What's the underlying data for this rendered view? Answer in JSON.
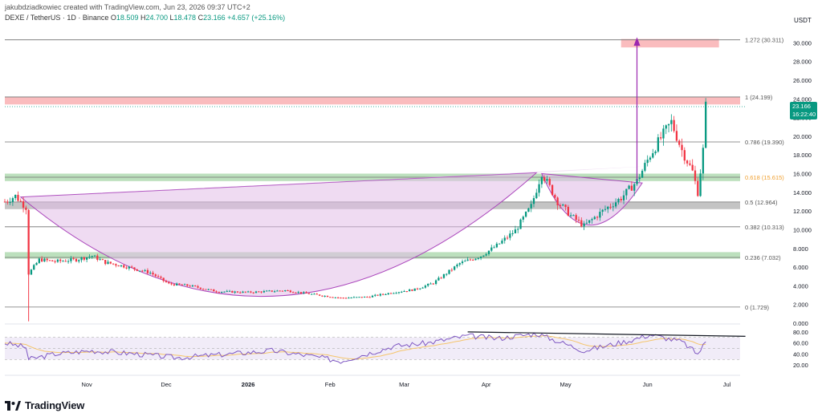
{
  "header": {
    "created_by": "jakubdziadkowiec created with TradingView.com, Jun 23, 2026 09:37 UTC+2",
    "symbol": "DEXE / TetherUS · 1D · Binance",
    "o_label": "O",
    "o": "18.509",
    "h_label": "H",
    "h": "24.700",
    "l_label": "L",
    "l": "18.478",
    "c_label": "C",
    "c": "23.166",
    "change": "+4.657 (+25.16%)"
  },
  "axis": {
    "unit": "USDT"
  },
  "footer": {
    "brand": "TradingView"
  },
  "colors": {
    "up": "#089981",
    "down": "#f23645",
    "cup_fill": "#e1bee7",
    "green_zone": "#a5d6a7",
    "red_zone": "#f8a5a8",
    "gray_zone": "#b0b0b0",
    "rsi_line": "#7e57c2",
    "rsi_ma": "#f5c56b",
    "arrow": "#9c27b0",
    "fib_618": "#f0a030"
  },
  "chart_data": {
    "type": "candlestick",
    "ylim": [
      0,
      32
    ],
    "y_ticks": [
      "0.000",
      "2.000",
      "4.000",
      "6.000",
      "8.000",
      "10.000",
      "12.000",
      "14.000",
      "16.000",
      "18.000",
      "20.000",
      "22.000",
      "24.000",
      "26.000",
      "28.000",
      "30.000"
    ],
    "x_ticks": [
      "Nov",
      "Dec",
      "2026",
      "Feb",
      "Mar",
      "Apr",
      "May",
      "Jun",
      "Jul"
    ],
    "last_price": "23.166",
    "countdown": "16:22:40",
    "fib_levels": [
      {
        "ratio": "1.272",
        "price": 30.311,
        "label": "1.272 (30.311)"
      },
      {
        "ratio": "1",
        "price": 24.199,
        "label": "1 (24.199)"
      },
      {
        "ratio": "0.786",
        "price": 19.39,
        "label": "0.786 (19.390)"
      },
      {
        "ratio": "0.618",
        "price": 15.615,
        "label": "0.618 (15.615)"
      },
      {
        "ratio": "0.5",
        "price": 12.964,
        "label": "0.5 (12.964)"
      },
      {
        "ratio": "0.382",
        "price": 10.313,
        "label": "0.382 (10.313)"
      },
      {
        "ratio": "0.236",
        "price": 7.032,
        "label": "0.236 (7.032)"
      },
      {
        "ratio": "0",
        "price": 1.729,
        "label": "0 (1.729)"
      }
    ],
    "zones": [
      {
        "type": "target",
        "low": 29.5,
        "high": 30.4
      },
      {
        "type": "resistance",
        "low": 23.4,
        "high": 24.2
      },
      {
        "type": "support",
        "low": 15.2,
        "high": 16.0
      },
      {
        "type": "support",
        "low": 12.2,
        "high": 13.0
      },
      {
        "type": "support",
        "low": 6.9,
        "high": 7.6
      }
    ],
    "price_path": [
      [
        "2025-10-01",
        13.0
      ],
      [
        "2025-10-05",
        13.6
      ],
      [
        "2025-10-09",
        12.4
      ],
      [
        "2025-10-10",
        5.3
      ],
      [
        "2025-10-14",
        6.8
      ],
      [
        "2025-10-20",
        6.6
      ],
      [
        "2025-10-28",
        6.8
      ],
      [
        "2025-11-03",
        7.2
      ],
      [
        "2025-11-08",
        6.5
      ],
      [
        "2025-11-15",
        6.1
      ],
      [
        "2025-11-25",
        5.4
      ],
      [
        "2025-12-02",
        4.2
      ],
      [
        "2025-12-10",
        4.0
      ],
      [
        "2025-12-20",
        3.4
      ],
      [
        "2026-01-01",
        3.3
      ],
      [
        "2026-01-15",
        3.5
      ],
      [
        "2026-01-25",
        3.1
      ],
      [
        "2026-02-05",
        2.7
      ],
      [
        "2026-02-15",
        2.8
      ],
      [
        "2026-02-25",
        3.3
      ],
      [
        "2026-03-05",
        3.6
      ],
      [
        "2026-03-12",
        4.3
      ],
      [
        "2026-03-22",
        6.4
      ],
      [
        "2026-03-30",
        7.2
      ],
      [
        "2026-04-05",
        8.3
      ],
      [
        "2026-04-12",
        9.9
      ],
      [
        "2026-04-18",
        12.5
      ],
      [
        "2026-04-22",
        16.1
      ],
      [
        "2026-04-28",
        13.0
      ],
      [
        "2026-05-03",
        11.5
      ],
      [
        "2026-05-08",
        10.4
      ],
      [
        "2026-05-15",
        12.0
      ],
      [
        "2026-05-22",
        13.4
      ],
      [
        "2026-05-28",
        15.2
      ],
      [
        "2026-06-02",
        18.0
      ],
      [
        "2026-06-06",
        19.8
      ],
      [
        "2026-06-10",
        21.5
      ],
      [
        "2026-06-14",
        18.5
      ],
      [
        "2026-06-18",
        16.2
      ],
      [
        "2026-06-20",
        14.0
      ],
      [
        "2026-06-22",
        18.5
      ],
      [
        "2026-06-23",
        23.166
      ]
    ],
    "rsi": {
      "ylim": [
        10,
        90
      ],
      "y_ticks": [
        "20.00",
        "40.00",
        "60.00",
        "80.00"
      ],
      "bands": [
        30,
        70
      ],
      "path": [
        [
          "2025-10-01",
          60
        ],
        [
          "2025-10-09",
          52
        ],
        [
          "2025-10-10",
          30
        ],
        [
          "2025-10-20",
          40
        ],
        [
          "2025-11-03",
          46
        ],
        [
          "2025-11-20",
          40
        ],
        [
          "2025-12-05",
          33
        ],
        [
          "2025-12-25",
          40
        ],
        [
          "2026-01-10",
          46
        ],
        [
          "2026-01-25",
          36
        ],
        [
          "2026-02-05",
          27
        ],
        [
          "2026-02-25",
          54
        ],
        [
          "2026-03-10",
          60
        ],
        [
          "2026-03-25",
          73
        ],
        [
          "2026-04-05",
          68
        ],
        [
          "2026-04-20",
          77
        ],
        [
          "2026-05-08",
          46
        ],
        [
          "2026-05-25",
          64
        ],
        [
          "2026-06-02",
          75
        ],
        [
          "2026-06-14",
          62
        ],
        [
          "2026-06-20",
          40
        ],
        [
          "2026-06-23",
          62
        ]
      ]
    }
  }
}
